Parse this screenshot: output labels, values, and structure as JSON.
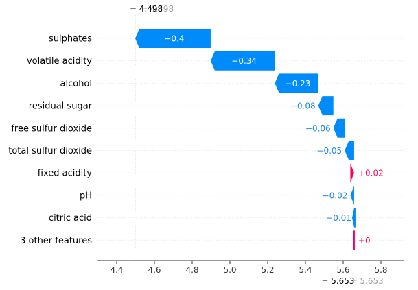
{
  "chart_data": {
    "type": "waterfall",
    "colors": {
      "negative": "#008bfb",
      "positive": "#ff0051",
      "negative_text": "#1e88e5",
      "positive_text": "#ff0d57"
    },
    "base_value_label": "= 4.498",
    "base_value_ghost": "= 4.498",
    "base_value": 4.498,
    "final_value_label": "= 5.653",
    "final_value_ghost": "= 5.653",
    "final_value": 5.653,
    "xlim": [
      4.3,
      5.85
    ],
    "xticks": [
      4.4,
      4.6,
      4.8,
      5.0,
      5.2,
      5.4,
      5.6,
      5.8
    ],
    "xtick_labels": [
      "4.4",
      "4.6",
      "4.8",
      "5.0",
      "5.2",
      "5.4",
      "5.6",
      "5.8"
    ],
    "features": [
      {
        "name": "sulphates",
        "value": -0.4,
        "label": "−0.4",
        "start": 4.898,
        "end": 4.498
      },
      {
        "name": "volatile acidity",
        "value": -0.34,
        "label": "−0.34",
        "start": 5.238,
        "end": 4.898
      },
      {
        "name": "alcohol",
        "value": -0.23,
        "label": "−0.23",
        "start": 5.468,
        "end": 5.238
      },
      {
        "name": "residual sugar",
        "value": -0.08,
        "label": "−0.08",
        "start": 5.548,
        "end": 5.468
      },
      {
        "name": "free sulfur dioxide",
        "value": -0.06,
        "label": "−0.06",
        "start": 5.608,
        "end": 5.548
      },
      {
        "name": "total sulfur dioxide",
        "value": -0.05,
        "label": "−0.05",
        "start": 5.658,
        "end": 5.608
      },
      {
        "name": "fixed acidity",
        "value": 0.02,
        "label": "+0.02",
        "start": 5.638,
        "end": 5.658
      },
      {
        "name": "pH",
        "value": -0.02,
        "label": "−0.02",
        "start": 5.658,
        "end": 5.638
      },
      {
        "name": "citric acid",
        "value": -0.01,
        "label": "−0.01",
        "start": 5.665,
        "end": 5.658
      },
      {
        "name": "3 other features",
        "value": 0.0,
        "label": "+0",
        "start": 5.658,
        "end": 5.658
      }
    ]
  }
}
